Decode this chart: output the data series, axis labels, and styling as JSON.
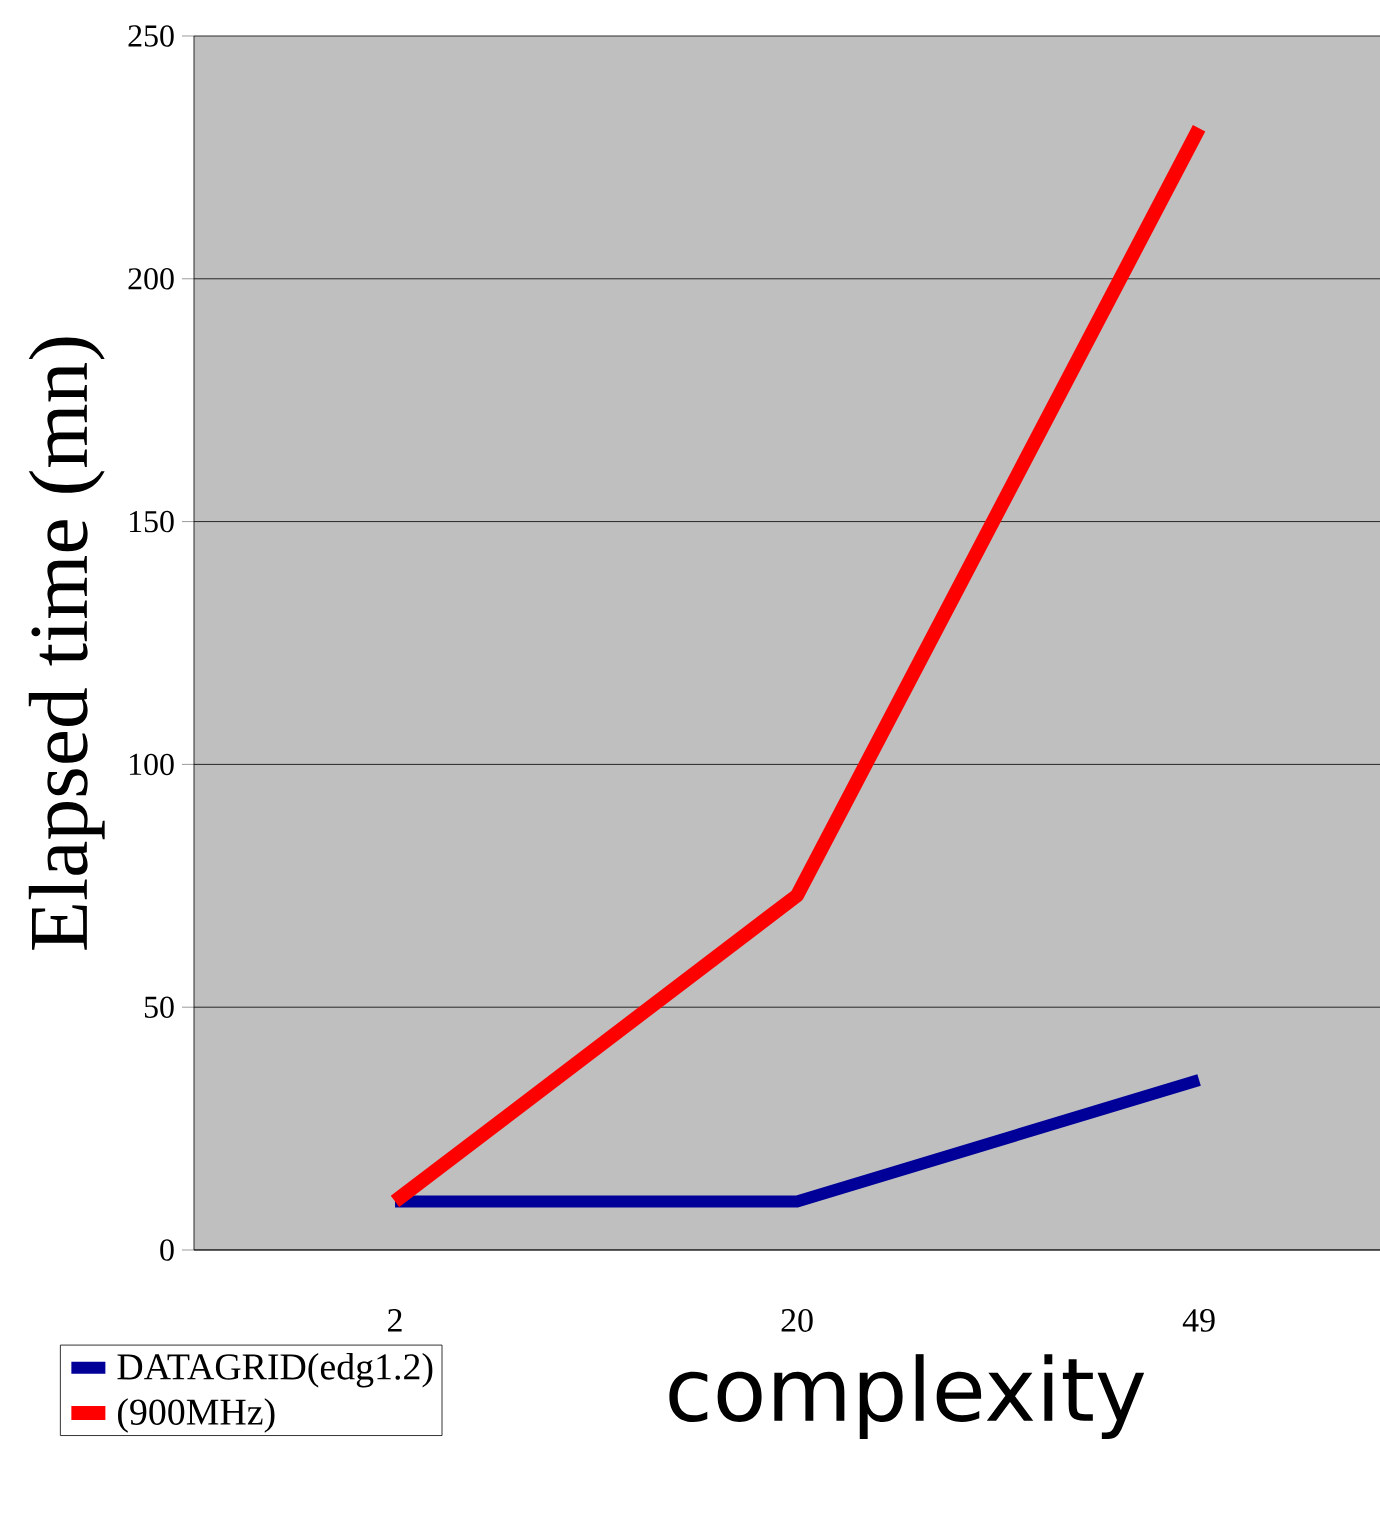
{
  "chart_data": {
    "type": "line",
    "xlabel": "complexity",
    "ylabel": "Elapsed time (mn)",
    "categories": [
      "2",
      "20",
      "49"
    ],
    "series": [
      {
        "name": "DATAGRID(edg1.2)",
        "color": "#000099",
        "values": [
          10,
          10,
          35
        ]
      },
      {
        "name": "(900MHz)",
        "color": "#ff0000",
        "values": [
          10,
          73,
          231
        ]
      }
    ],
    "ylim": [
      0,
      250
    ],
    "yticks": [
      0,
      50,
      100,
      150,
      200,
      250
    ],
    "grid": "y",
    "legend": "bottom left",
    "line_style": "solid"
  }
}
